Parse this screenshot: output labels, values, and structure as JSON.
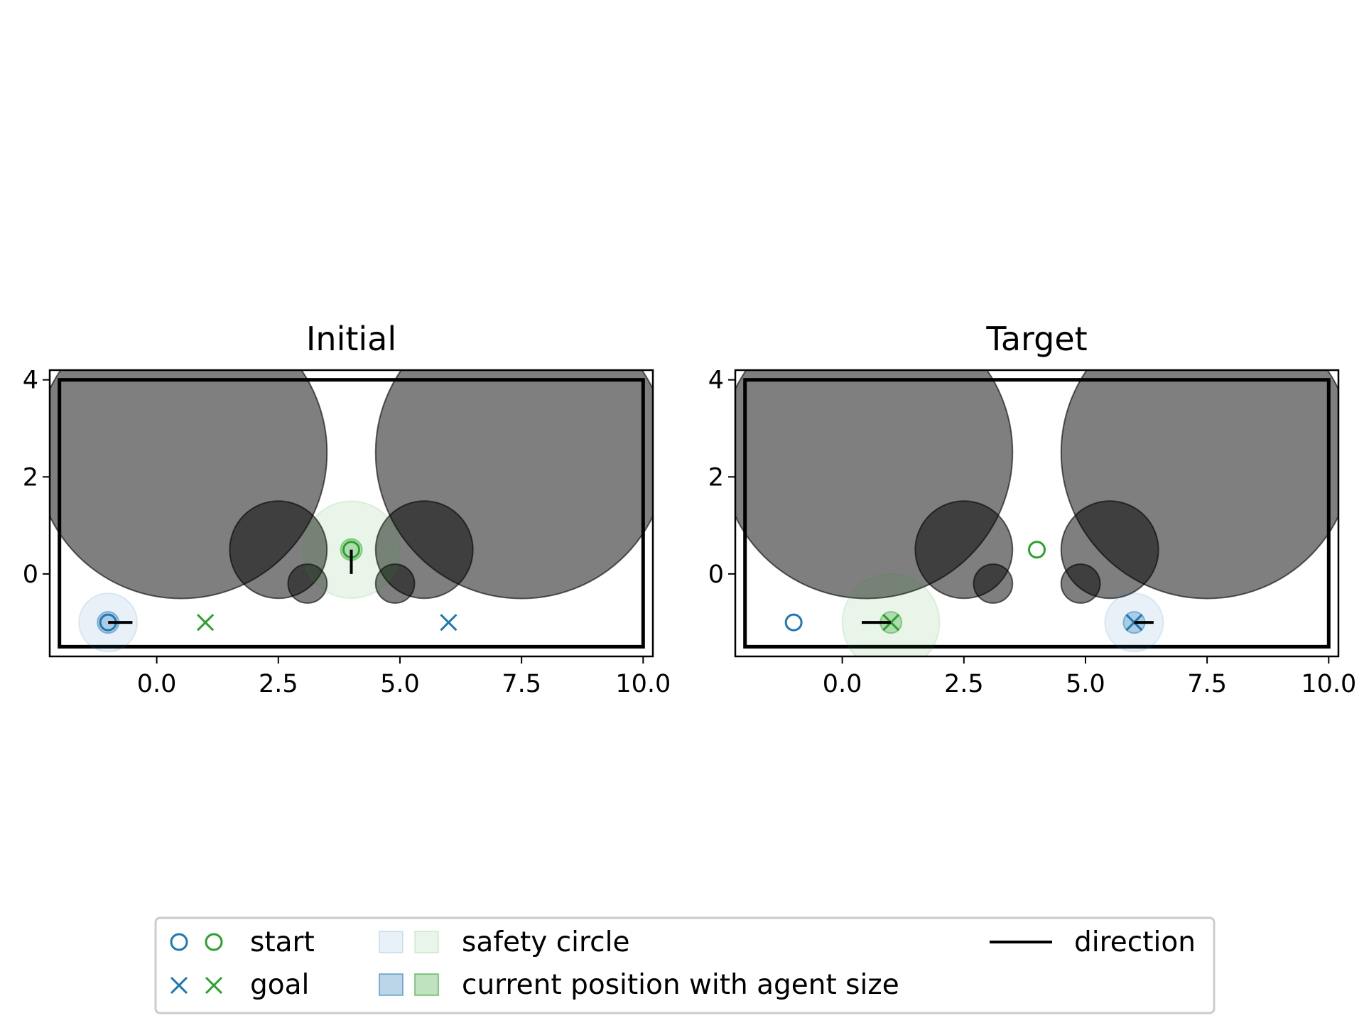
{
  "chart_data": [
    {
      "type": "scatter",
      "title": "Initial",
      "xlim": [
        -2.2,
        10.2
      ],
      "ylim": [
        -1.7,
        4.2
      ],
      "xticks": [
        "0.0",
        "2.5",
        "5.0",
        "7.5",
        "10.0"
      ],
      "yticks": [
        "0",
        "2",
        "4"
      ],
      "boundary": {
        "x": [
          -2,
          10
        ],
        "y": [
          -1.5,
          4
        ]
      },
      "obstacles": [
        {
          "x": 0.5,
          "y": 2.5,
          "r": 3.0
        },
        {
          "x": 7.5,
          "y": 2.5,
          "r": 3.0
        },
        {
          "x": 2.5,
          "y": 0.5,
          "r": 1.0
        },
        {
          "x": 5.5,
          "y": 0.5,
          "r": 1.0
        },
        {
          "x": 3.1,
          "y": -0.2,
          "r": 0.4
        },
        {
          "x": 4.9,
          "y": -0.2,
          "r": 0.4
        }
      ],
      "agents": [
        {
          "color": "#1f77b4",
          "start": [
            -1,
            -1
          ],
          "goal": [
            6,
            -1
          ],
          "current": [
            -1,
            -1
          ],
          "agent_radius": 0.4,
          "safety_radius": 0.6,
          "direction_end": [
            -0.5,
            -1
          ]
        },
        {
          "color": "#2ca02c",
          "start": [
            4,
            0.5
          ],
          "goal": [
            1,
            -1
          ],
          "current": [
            4,
            0.5
          ],
          "agent_radius": 0.4,
          "safety_radius": 1.0,
          "direction_end": [
            4,
            0.0
          ]
        }
      ]
    },
    {
      "type": "scatter",
      "title": "Target",
      "xlim": [
        -2.2,
        10.2
      ],
      "ylim": [
        -1.7,
        4.2
      ],
      "xticks": [
        "0.0",
        "2.5",
        "5.0",
        "7.5",
        "10.0"
      ],
      "yticks": [
        "0",
        "2",
        "4"
      ],
      "boundary": {
        "x": [
          -2,
          10
        ],
        "y": [
          -1.5,
          4
        ]
      },
      "obstacles": [
        {
          "x": 0.5,
          "y": 2.5,
          "r": 3.0
        },
        {
          "x": 7.5,
          "y": 2.5,
          "r": 3.0
        },
        {
          "x": 2.5,
          "y": 0.5,
          "r": 1.0
        },
        {
          "x": 5.5,
          "y": 0.5,
          "r": 1.0
        },
        {
          "x": 3.1,
          "y": -0.2,
          "r": 0.4
        },
        {
          "x": 4.9,
          "y": -0.2,
          "r": 0.4
        }
      ],
      "agents": [
        {
          "color": "#1f77b4",
          "start": [
            -1,
            -1
          ],
          "goal": [
            6,
            -1
          ],
          "current": [
            6,
            -1
          ],
          "agent_radius": 0.4,
          "safety_radius": 0.6,
          "direction_end": [
            6.4,
            -1
          ]
        },
        {
          "color": "#2ca02c",
          "start": [
            4,
            0.5
          ],
          "goal": [
            1,
            -1
          ],
          "current": [
            1,
            -1
          ],
          "agent_radius": 0.4,
          "safety_radius": 1.0,
          "direction_end": [
            0.4,
            -1
          ]
        }
      ]
    }
  ],
  "legend": {
    "start_label": "start",
    "goal_label": "goal",
    "safety_label": "safety circle",
    "current_label": "current position with agent size",
    "direction_label": "direction"
  },
  "colors": {
    "agent_1": "#1f77b4",
    "agent_2": "#2ca02c",
    "obstacle": "#808080",
    "obstacle_overlap": "#3c3c3c"
  }
}
